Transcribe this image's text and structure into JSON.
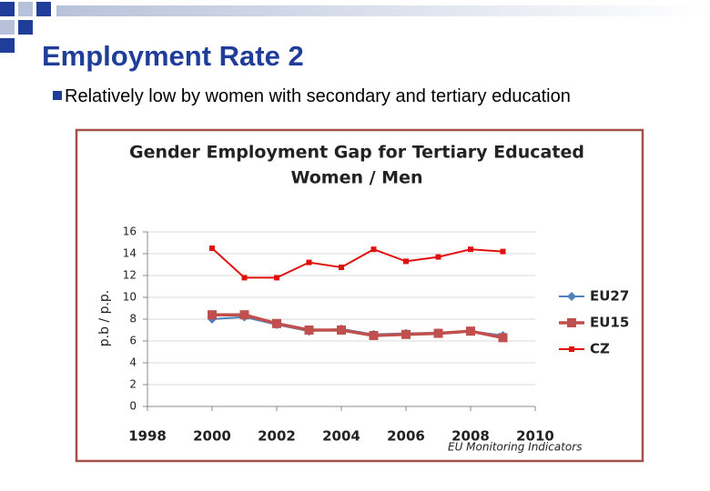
{
  "slide": {
    "title": "Employment Rate 2",
    "bullet": "Relatively low by women with secondary and tertiary education"
  },
  "chart_data": {
    "type": "line",
    "title": [
      "Gender Employment Gap for Tertiary Educated",
      "Women / Men"
    ],
    "y_label": "p.b / p.p.",
    "source": "EU Monitoring Indicators",
    "x": [
      2000,
      2001,
      2002,
      2003,
      2004,
      2005,
      2006,
      2007,
      2008,
      2009
    ],
    "xlim": [
      1998,
      2010
    ],
    "xticks": [
      1998,
      2000,
      2002,
      2004,
      2006,
      2008,
      2010
    ],
    "ylim": [
      0,
      16
    ],
    "yticks": [
      0,
      2,
      4,
      6,
      8,
      10,
      12,
      14,
      16
    ],
    "grid": true,
    "legend": "right",
    "series": [
      {
        "name": "EU27",
        "color": "#4f81bd",
        "marker": "diamond",
        "values": [
          8.0,
          8.2,
          7.5,
          6.9,
          7.1,
          6.6,
          6.7,
          6.75,
          6.9,
          6.5
        ]
      },
      {
        "name": "EU15",
        "color": "#c0504d",
        "marker": "square",
        "values": [
          8.4,
          8.4,
          7.6,
          7.0,
          7.0,
          6.5,
          6.6,
          6.7,
          6.9,
          6.3
        ]
      },
      {
        "name": "CZ",
        "color": "#e0100e",
        "marker": "small-square",
        "values": [
          14.5,
          11.8,
          11.8,
          13.2,
          12.75,
          14.4,
          13.3,
          13.7,
          14.4,
          14.2
        ]
      }
    ]
  }
}
